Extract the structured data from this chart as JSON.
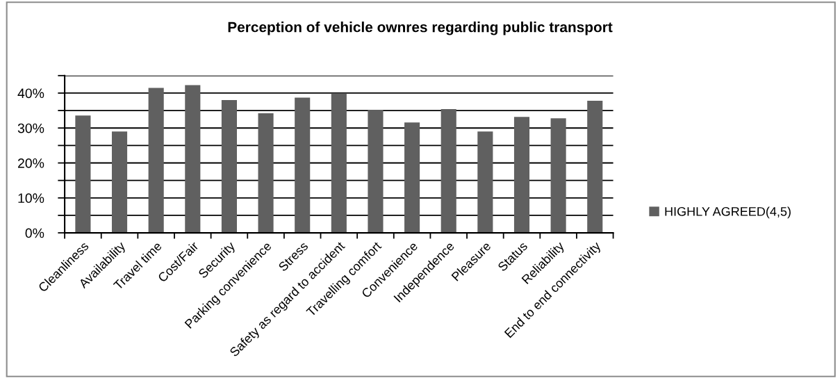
{
  "chart_data": {
    "type": "bar",
    "title": "Perception of vehicle ownres regarding public transport",
    "categories": [
      "Cleanliness",
      "Availability",
      "Travel time",
      "Cost/Fair",
      "Security",
      "Parking convenience",
      "Stress",
      "Safety as regard to accident",
      "Travelling comfort",
      "Convenience",
      "Independence",
      "Pleasure",
      "Status",
      "Reliability",
      "End to end connectivity"
    ],
    "series": [
      {
        "name": "HIGHLY AGREED(4,5)",
        "color": "#606060",
        "values": [
          33.6,
          29.0,
          41.5,
          42.3,
          38.0,
          34.2,
          38.7,
          39.9,
          35.2,
          31.6,
          35.4,
          29.0,
          33.2,
          32.8,
          37.8
        ]
      }
    ],
    "ylim": [
      0,
      45
    ],
    "yticks": [
      {
        "value": 0,
        "label": "0%"
      },
      {
        "value": 5,
        "label": null
      },
      {
        "value": 10,
        "label": "10%"
      },
      {
        "value": 15,
        "label": null
      },
      {
        "value": 20,
        "label": "20%"
      },
      {
        "value": 25,
        "label": null
      },
      {
        "value": 30,
        "label": "30%"
      },
      {
        "value": 35,
        "label": null
      },
      {
        "value": 40,
        "label": "40%"
      },
      {
        "value": 45,
        "label": null
      }
    ],
    "grid": "y",
    "legend": "right"
  }
}
